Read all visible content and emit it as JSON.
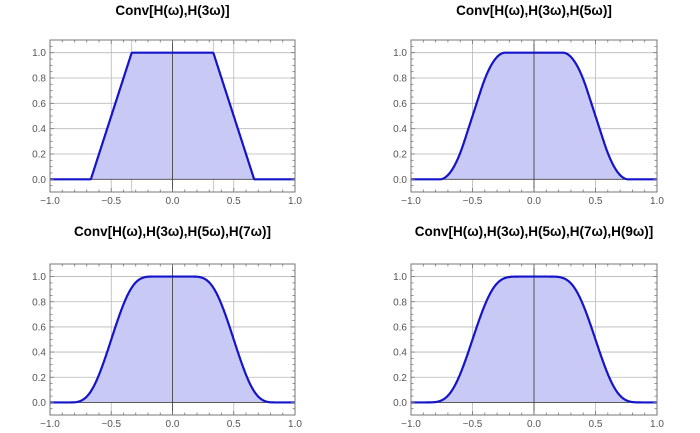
{
  "colors": {
    "curve": "#1414c8",
    "fill": "#c9c9f6",
    "grid": "#b8b8b8",
    "axis": "#444444",
    "frame": "#777777",
    "tick_label": "#555555"
  },
  "panels": [
    {
      "title": "Conv[H(ω),H(3ω)]"
    },
    {
      "title": "Conv[H(ω),H(3ω),H(5ω)]"
    },
    {
      "title": "Conv[H(ω),H(3ω),H(5ω),H(7ω)]"
    },
    {
      "title": "Conv[H(ω),H(3ω),H(5ω),H(7ω),H(9ω)]"
    }
  ],
  "axes": {
    "x_ticks": [
      "−1.0",
      "−0.5",
      "0.0",
      "0.5",
      "1.0"
    ],
    "y_ticks": [
      "0.0",
      "0.2",
      "0.4",
      "0.6",
      "0.8",
      "1.0"
    ]
  },
  "chart_data": [
    {
      "type": "area",
      "title": "Conv[H(ω),H(3ω)]",
      "xlabel": "",
      "ylabel": "",
      "xlim": [
        -1.0,
        1.0
      ],
      "ylim": [
        -0.1,
        1.1
      ],
      "grid": true,
      "extra_x_gridlines": [
        -0.3333,
        0.3333
      ],
      "box_widths": [
        1,
        0.3333
      ],
      "x": [
        -1.0,
        -0.9,
        -0.8,
        -0.7,
        -0.6,
        -0.5,
        -0.4,
        -0.3,
        -0.2,
        -0.1,
        0.0,
        0.1,
        0.2,
        0.3,
        0.4,
        0.5,
        0.6,
        0.7,
        0.8,
        0.9,
        1.0
      ],
      "y": [
        0,
        0,
        0,
        0,
        0.2,
        0.5,
        0.8,
        1,
        1,
        1,
        1,
        1,
        1,
        1,
        0.8,
        0.5,
        0.2,
        0,
        0,
        0,
        0
      ]
    },
    {
      "type": "area",
      "title": "Conv[H(ω),H(3ω),H(5ω)]",
      "xlabel": "",
      "ylabel": "",
      "xlim": [
        -1.0,
        1.0
      ],
      "ylim": [
        -0.1,
        1.1
      ],
      "grid": true,
      "box_widths": [
        1,
        0.3333,
        0.2
      ],
      "x": [
        -1.0,
        -0.9,
        -0.8,
        -0.7,
        -0.6,
        -0.5,
        -0.4,
        -0.3,
        -0.2,
        -0.1,
        0.0,
        0.1,
        0.2,
        0.3,
        0.4,
        0.5,
        0.6,
        0.7,
        0.8,
        0.9,
        1.0
      ],
      "y": [
        0,
        0,
        0,
        0.033,
        0.208,
        0.5,
        0.79,
        0.967,
        1,
        1,
        1,
        1,
        1,
        0.967,
        0.79,
        0.5,
        0.208,
        0.033,
        0,
        0,
        0
      ]
    },
    {
      "type": "area",
      "title": "Conv[H(ω),H(3ω),H(5ω),H(7ω)]",
      "xlabel": "",
      "ylabel": "",
      "xlim": [
        -1.0,
        1.0
      ],
      "ylim": [
        -0.1,
        1.1
      ],
      "grid": true,
      "box_widths": [
        1,
        0.3333,
        0.2,
        0.1429
      ],
      "x": [
        -1.0,
        -0.9,
        -0.8,
        -0.7,
        -0.6,
        -0.5,
        -0.4,
        -0.3,
        -0.2,
        -0.1,
        0.0,
        0.1,
        0.2,
        0.3,
        0.4,
        0.5,
        0.6,
        0.7,
        0.8,
        0.9,
        1.0
      ],
      "y": [
        0,
        0,
        0.002,
        0.05,
        0.22,
        0.5,
        0.78,
        0.95,
        0.995,
        1,
        1,
        1,
        0.995,
        0.95,
        0.78,
        0.5,
        0.22,
        0.05,
        0.002,
        0,
        0
      ]
    },
    {
      "type": "area",
      "title": "Conv[H(ω),H(3ω),H(5ω),H(7ω),H(9ω)]",
      "xlabel": "",
      "ylabel": "",
      "xlim": [
        -1.0,
        1.0
      ],
      "ylim": [
        -0.1,
        1.1
      ],
      "grid": true,
      "box_widths": [
        1,
        0.3333,
        0.2,
        0.1429,
        0.1111
      ],
      "x": [
        -1.0,
        -0.9,
        -0.8,
        -0.7,
        -0.6,
        -0.5,
        -0.4,
        -0.3,
        -0.2,
        -0.1,
        0.0,
        0.1,
        0.2,
        0.3,
        0.4,
        0.5,
        0.6,
        0.7,
        0.8,
        0.9,
        1.0
      ],
      "y": [
        0,
        0,
        0.005,
        0.06,
        0.23,
        0.5,
        0.77,
        0.94,
        0.99,
        1,
        1,
        1,
        0.99,
        0.94,
        0.77,
        0.5,
        0.23,
        0.06,
        0.005,
        0,
        0
      ]
    }
  ]
}
